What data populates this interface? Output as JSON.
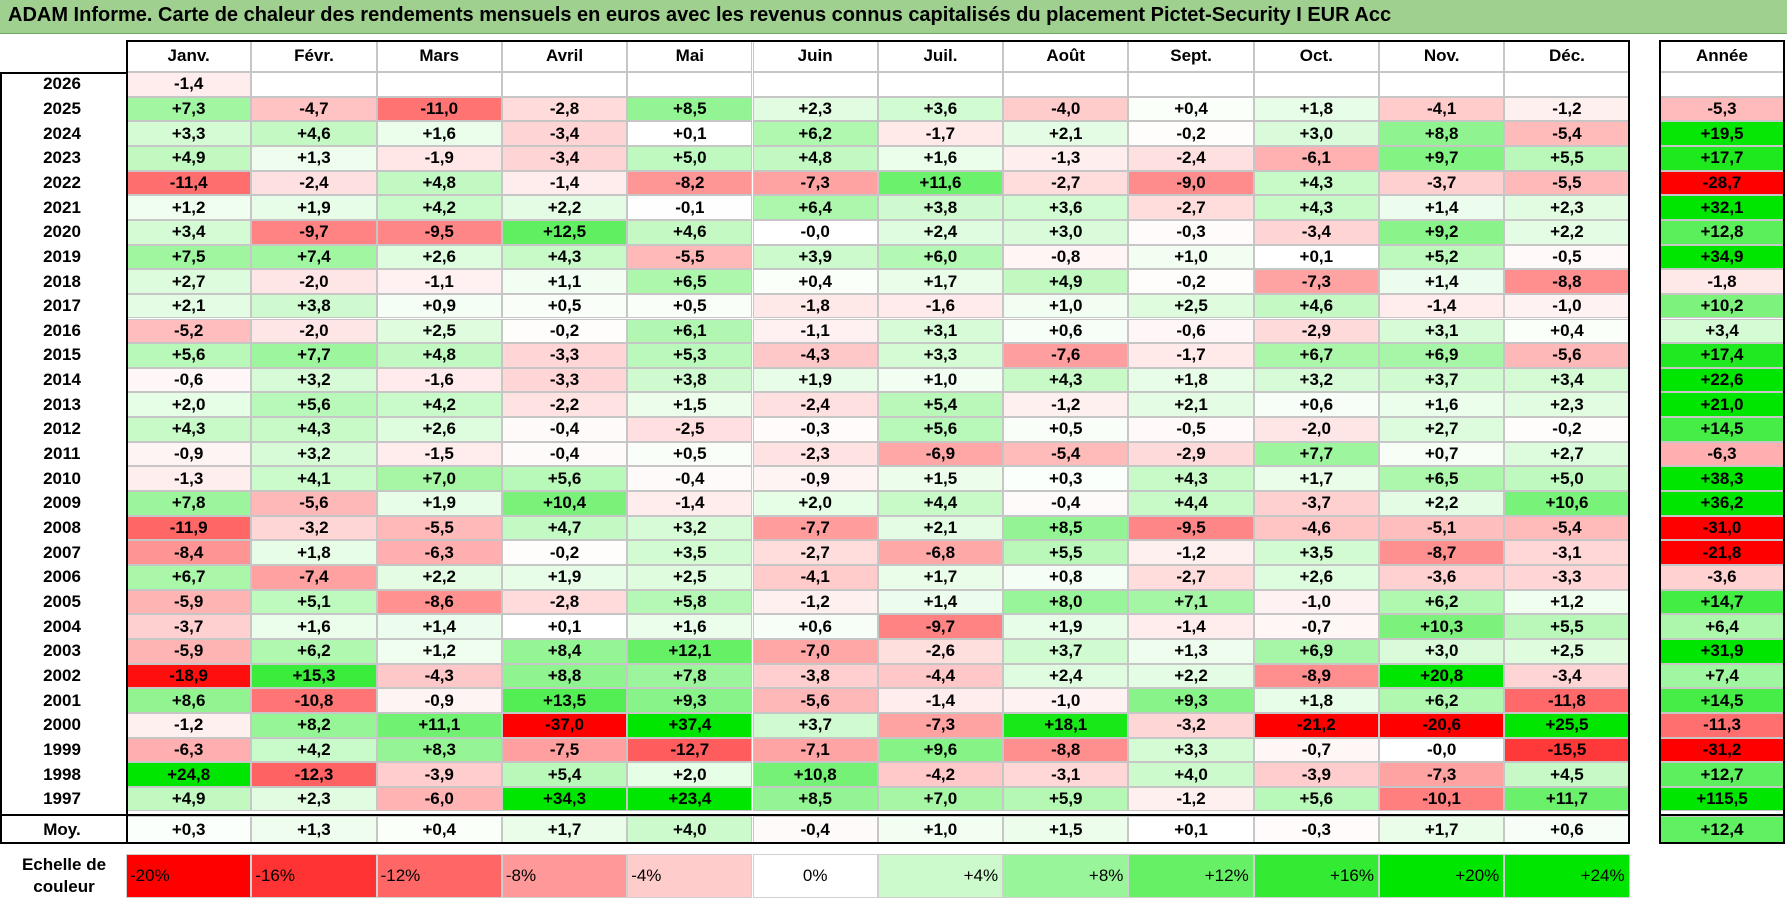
{
  "title": "ADAM Informe. Carte de chaleur des rendements mensuels en euros avec les revenus connus capitalisés du placement Pictet-Security I EUR Acc",
  "chart_data": {
    "type": "heatmap",
    "months": [
      "Janv.",
      "Févr.",
      "Mars",
      "Avril",
      "Mai",
      "Juin",
      "Juil.",
      "Août",
      "Sept.",
      "Oct.",
      "Nov.",
      "Déc."
    ],
    "year_header": "Année",
    "rows": [
      {
        "year": "2026",
        "values": [
          "-1,4",
          null,
          null,
          null,
          null,
          null,
          null,
          null,
          null,
          null,
          null,
          null
        ],
        "annual": null
      },
      {
        "year": "2025",
        "values": [
          "+7,3",
          "-4,7",
          "-11,0",
          "-2,8",
          "+8,5",
          "+2,3",
          "+3,6",
          "-4,0",
          "+0,4",
          "+1,8",
          "-4,1",
          "-1,2"
        ],
        "annual": "-5,3"
      },
      {
        "year": "2024",
        "values": [
          "+3,3",
          "+4,6",
          "+1,6",
          "-3,4",
          "+0,1",
          "+6,2",
          "-1,7",
          "+2,1",
          "-0,2",
          "+3,0",
          "+8,8",
          "-5,4"
        ],
        "annual": "+19,5"
      },
      {
        "year": "2023",
        "values": [
          "+4,9",
          "+1,3",
          "-1,9",
          "-3,4",
          "+5,0",
          "+4,8",
          "+1,6",
          "-1,3",
          "-2,4",
          "-6,1",
          "+9,7",
          "+5,5"
        ],
        "annual": "+17,7"
      },
      {
        "year": "2022",
        "values": [
          "-11,4",
          "-2,4",
          "+4,8",
          "-1,4",
          "-8,2",
          "-7,3",
          "+11,6",
          "-2,7",
          "-9,0",
          "+4,3",
          "-3,7",
          "-5,5"
        ],
        "annual": "-28,7"
      },
      {
        "year": "2021",
        "values": [
          "+1,2",
          "+1,9",
          "+4,2",
          "+2,2",
          "-0,1",
          "+6,4",
          "+3,8",
          "+3,6",
          "-2,7",
          "+4,3",
          "+1,4",
          "+2,3"
        ],
        "annual": "+32,1"
      },
      {
        "year": "2020",
        "values": [
          "+3,4",
          "-9,7",
          "-9,5",
          "+12,5",
          "+4,6",
          "-0,0",
          "+2,4",
          "+3,0",
          "-0,3",
          "-3,4",
          "+9,2",
          "+2,2"
        ],
        "annual": "+12,8"
      },
      {
        "year": "2019",
        "values": [
          "+7,5",
          "+7,4",
          "+2,6",
          "+4,3",
          "-5,5",
          "+3,9",
          "+6,0",
          "-0,8",
          "+1,0",
          "+0,1",
          "+5,2",
          "-0,5"
        ],
        "annual": "+34,9"
      },
      {
        "year": "2018",
        "values": [
          "+2,7",
          "-2,0",
          "-1,1",
          "+1,1",
          "+6,5",
          "+0,4",
          "+1,7",
          "+4,9",
          "-0,2",
          "-7,3",
          "+1,4",
          "-8,8"
        ],
        "annual": "-1,8"
      },
      {
        "year": "2017",
        "values": [
          "+2,1",
          "+3,8",
          "+0,9",
          "+0,5",
          "+0,5",
          "-1,8",
          "-1,6",
          "+1,0",
          "+2,5",
          "+4,6",
          "-1,4",
          "-1,0"
        ],
        "annual": "+10,2"
      },
      {
        "year": "2016",
        "values": [
          "-5,2",
          "-2,0",
          "+2,5",
          "-0,2",
          "+6,1",
          "-1,1",
          "+3,1",
          "+0,6",
          "-0,6",
          "-2,9",
          "+3,1",
          "+0,4"
        ],
        "annual": "+3,4"
      },
      {
        "year": "2015",
        "values": [
          "+5,6",
          "+7,7",
          "+4,8",
          "-3,3",
          "+5,3",
          "-4,3",
          "+3,3",
          "-7,6",
          "-1,7",
          "+6,7",
          "+6,9",
          "-5,6"
        ],
        "annual": "+17,4"
      },
      {
        "year": "2014",
        "values": [
          "-0,6",
          "+3,2",
          "-1,6",
          "-3,3",
          "+3,8",
          "+1,9",
          "+1,0",
          "+4,3",
          "+1,8",
          "+3,2",
          "+3,7",
          "+3,4"
        ],
        "annual": "+22,6"
      },
      {
        "year": "2013",
        "values": [
          "+2,0",
          "+5,6",
          "+4,2",
          "-2,2",
          "+1,5",
          "-2,4",
          "+5,4",
          "-1,2",
          "+2,1",
          "+0,6",
          "+1,6",
          "+2,3"
        ],
        "annual": "+21,0"
      },
      {
        "year": "2012",
        "values": [
          "+4,3",
          "+4,3",
          "+2,6",
          "-0,4",
          "-2,5",
          "-0,3",
          "+5,6",
          "+0,5",
          "-0,5",
          "-2,0",
          "+2,7",
          "-0,2"
        ],
        "annual": "+14,5"
      },
      {
        "year": "2011",
        "values": [
          "-0,9",
          "+3,2",
          "-1,5",
          "-0,4",
          "+0,5",
          "-2,3",
          "-6,9",
          "-5,4",
          "-2,9",
          "+7,7",
          "+0,7",
          "+2,7"
        ],
        "annual": "-6,3"
      },
      {
        "year": "2010",
        "values": [
          "-1,3",
          "+4,1",
          "+7,0",
          "+5,6",
          "-0,4",
          "-0,9",
          "+1,5",
          "+0,3",
          "+4,3",
          "+1,7",
          "+6,5",
          "+5,0"
        ],
        "annual": "+38,3"
      },
      {
        "year": "2009",
        "values": [
          "+7,8",
          "-5,6",
          "+1,9",
          "+10,4",
          "-1,4",
          "+2,0",
          "+4,4",
          "-0,4",
          "+4,4",
          "-3,7",
          "+2,2",
          "+10,6"
        ],
        "annual": "+36,2"
      },
      {
        "year": "2008",
        "values": [
          "-11,9",
          "-3,2",
          "-5,5",
          "+4,7",
          "+3,2",
          "-7,7",
          "+2,1",
          "+8,5",
          "-9,5",
          "-4,6",
          "-5,1",
          "-5,4"
        ],
        "annual": "-31,0"
      },
      {
        "year": "2007",
        "values": [
          "-8,4",
          "+1,8",
          "-6,3",
          "-0,2",
          "+3,5",
          "-2,7",
          "-6,8",
          "+5,5",
          "-1,2",
          "+3,5",
          "-8,7",
          "-3,1"
        ],
        "annual": "-21,8"
      },
      {
        "year": "2006",
        "values": [
          "+6,7",
          "-7,4",
          "+2,2",
          "+1,9",
          "+2,5",
          "-4,1",
          "+1,7",
          "+0,8",
          "-2,7",
          "+2,6",
          "-3,6",
          "-3,3"
        ],
        "annual": "-3,6"
      },
      {
        "year": "2005",
        "values": [
          "-5,9",
          "+5,1",
          "-8,6",
          "-2,8",
          "+5,8",
          "-1,2",
          "+1,4",
          "+8,0",
          "+7,1",
          "-1,0",
          "+6,2",
          "+1,2"
        ],
        "annual": "+14,7"
      },
      {
        "year": "2004",
        "values": [
          "-3,7",
          "+1,6",
          "+1,4",
          "+0,1",
          "+1,6",
          "+0,6",
          "-9,7",
          "+1,9",
          "-1,4",
          "-0,7",
          "+10,3",
          "+5,5"
        ],
        "annual": "+6,4"
      },
      {
        "year": "2003",
        "values": [
          "-5,9",
          "+6,2",
          "+1,2",
          "+8,4",
          "+12,1",
          "-7,0",
          "-2,6",
          "+3,7",
          "+1,3",
          "+6,9",
          "+3,0",
          "+2,5"
        ],
        "annual": "+31,9"
      },
      {
        "year": "2002",
        "values": [
          "-18,9",
          "+15,3",
          "-4,3",
          "+8,8",
          "+7,8",
          "-3,8",
          "-4,4",
          "+2,4",
          "+2,2",
          "-8,9",
          "+20,8",
          "-3,4"
        ],
        "annual": "+7,4"
      },
      {
        "year": "2001",
        "values": [
          "+8,6",
          "-10,8",
          "-0,9",
          "+13,5",
          "+9,3",
          "-5,6",
          "-1,4",
          "-1,0",
          "+9,3",
          "+1,8",
          "+6,2",
          "-11,8"
        ],
        "annual": "+14,5"
      },
      {
        "year": "2000",
        "values": [
          "-1,2",
          "+8,2",
          "+11,1",
          "-37,0",
          "+37,4",
          "+3,7",
          "-7,3",
          "+18,1",
          "-3,2",
          "-21,2",
          "-20,6",
          "+25,5"
        ],
        "annual": "-11,3"
      },
      {
        "year": "1999",
        "values": [
          "-6,3",
          "+4,2",
          "+8,3",
          "-7,5",
          "-12,7",
          "-7,1",
          "+9,6",
          "-8,8",
          "+3,3",
          "-0,7",
          "-0,0",
          "-15,5"
        ],
        "annual": "-31,2"
      },
      {
        "year": "1998",
        "values": [
          "+24,8",
          "-12,3",
          "-3,9",
          "+5,4",
          "+2,0",
          "+10,8",
          "-4,2",
          "-3,1",
          "+4,0",
          "-3,9",
          "-7,3",
          "+4,5"
        ],
        "annual": "+12,7"
      },
      {
        "year": "1997",
        "values": [
          "+4,9",
          "+2,3",
          "-6,0",
          "+34,3",
          "+23,4",
          "+8,5",
          "+7,0",
          "+5,9",
          "-1,2",
          "+5,6",
          "-10,1",
          "+11,7"
        ],
        "annual": "+115,5"
      }
    ],
    "average": {
      "label": "Moy.",
      "values": [
        "+0,3",
        "+1,3",
        "+0,4",
        "+1,7",
        "+4,0",
        "-0,4",
        "+1,0",
        "+1,5",
        "+0,1",
        "-0,3",
        "+1,7",
        "+0,6"
      ],
      "annual": "+12,4"
    },
    "legend": {
      "title": "Echelle de\ncouleur",
      "items": [
        {
          "label": "-20%",
          "value": -20
        },
        {
          "label": "-16%",
          "value": -16
        },
        {
          "label": "-12%",
          "value": -12
        },
        {
          "label": "-8%",
          "value": -8
        },
        {
          "label": "-4%",
          "value": -4
        },
        {
          "label": "0%",
          "value": 0
        },
        {
          "label": "+4%",
          "value": 4
        },
        {
          "label": "+8%",
          "value": 8
        },
        {
          "label": "+12%",
          "value": 12
        },
        {
          "label": "+16%",
          "value": 16
        },
        {
          "label": "+20%",
          "value": 20
        },
        {
          "label": "+24%",
          "value": 24
        }
      ]
    },
    "colors": {
      "negative_max": "#ff0000",
      "neutral": "#ffffff",
      "positive_max": "#00e600"
    }
  }
}
